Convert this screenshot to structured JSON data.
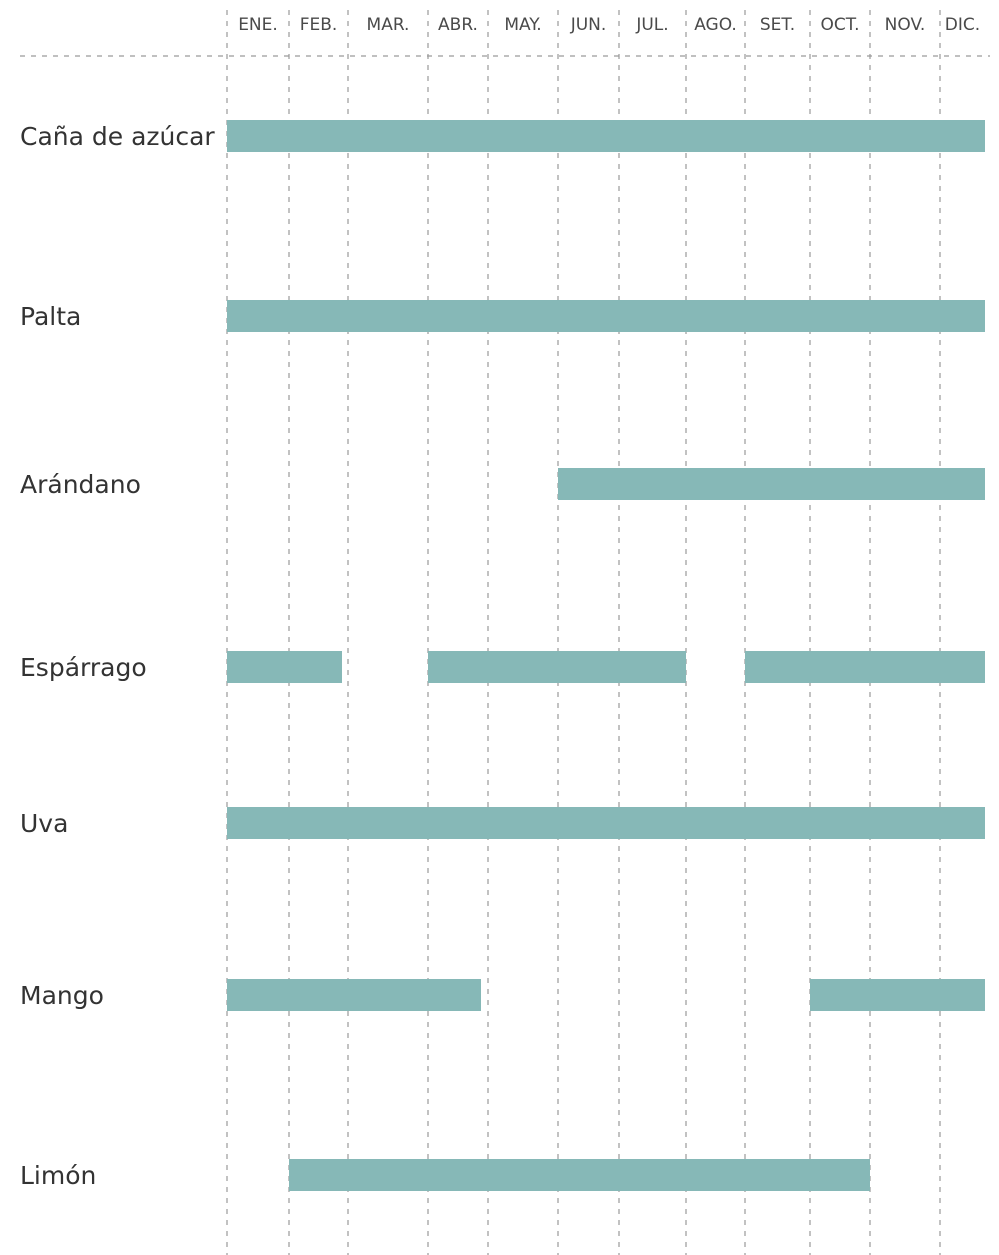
{
  "chart_data": {
    "type": "gantt",
    "title": "",
    "months": [
      "ENE.",
      "FEB.",
      "MAR.",
      "ABR.",
      "MAY.",
      "JUN.",
      "JUL.",
      "AGO.",
      "SET.",
      "OCT.",
      "NOV.",
      "DIC."
    ],
    "crops": [
      {
        "name": "Caña de azúcar",
        "periods": [
          [
            1,
            12
          ]
        ]
      },
      {
        "name": "Palta",
        "periods": [
          [
            1,
            12
          ]
        ]
      },
      {
        "name": "Arándano",
        "periods": [
          [
            6,
            12
          ]
        ]
      },
      {
        "name": "Espárrago",
        "periods": [
          [
            1,
            2
          ],
          [
            4,
            7
          ],
          [
            9,
            12
          ]
        ]
      },
      {
        "name": "Uva",
        "periods": [
          [
            1,
            12
          ]
        ]
      },
      {
        "name": "Mango",
        "periods": [
          [
            1,
            4
          ],
          [
            10,
            12
          ]
        ]
      },
      {
        "name": "Limón",
        "periods": [
          [
            2,
            10
          ]
        ]
      }
    ],
    "bar_color": "#86b8b7",
    "grid": true,
    "grid_style": "dashed"
  }
}
